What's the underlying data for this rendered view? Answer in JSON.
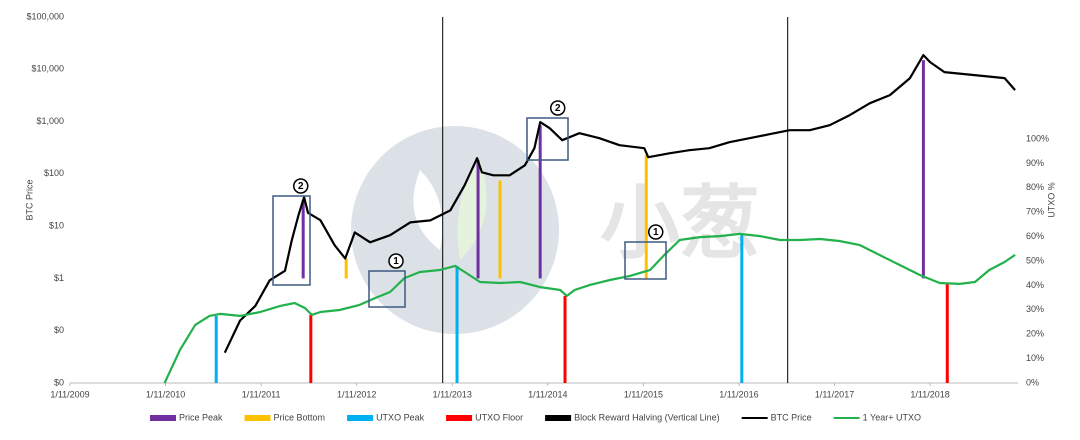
{
  "chart_data": {
    "type": "line",
    "log_scale": true,
    "grid": false,
    "y_label": "BTC Price",
    "y2_label": "UTXO %",
    "watermark": "小葱",
    "xlim": [
      2009.83,
      2019.75
    ],
    "xticks": [
      {
        "value": 2009.83,
        "label": "1/11/2009"
      },
      {
        "value": 2010.83,
        "label": "1/11/2010"
      },
      {
        "value": 2011.83,
        "label": "1/11/2011"
      },
      {
        "value": 2012.83,
        "label": "1/11/2012"
      },
      {
        "value": 2013.83,
        "label": "1/11/2013"
      },
      {
        "value": 2014.83,
        "label": "1/11/2014"
      },
      {
        "value": 2015.83,
        "label": "1/11/2015"
      },
      {
        "value": 2016.83,
        "label": "1/11/2016"
      },
      {
        "value": 2017.83,
        "label": "1/11/2017"
      },
      {
        "value": 2018.83,
        "label": "1/11/2018"
      }
    ],
    "ylim": [
      0.01,
      100000
    ],
    "yticks": [
      {
        "value": 0.01,
        "label": "$0"
      },
      {
        "value": 0.1,
        "label": "$0"
      },
      {
        "value": 1,
        "label": "$1"
      },
      {
        "value": 10,
        "label": "$10"
      },
      {
        "value": 100,
        "label": "$100"
      },
      {
        "value": 1000,
        "label": "$1,000"
      },
      {
        "value": 10000,
        "label": "$10,000"
      },
      {
        "value": 100000,
        "label": "$100,000"
      }
    ],
    "y2lim": [
      0,
      150
    ],
    "y2ticks": [
      {
        "value": 0,
        "label": "0%"
      },
      {
        "value": 10,
        "label": "10%"
      },
      {
        "value": 20,
        "label": "20%"
      },
      {
        "value": 30,
        "label": "30%"
      },
      {
        "value": 40,
        "label": "40%"
      },
      {
        "value": 50,
        "label": "50%"
      },
      {
        "value": 60,
        "label": "60%"
      },
      {
        "value": 70,
        "label": "70%"
      },
      {
        "value": 80,
        "label": "80%"
      },
      {
        "value": 90,
        "label": "90%"
      },
      {
        "value": 100,
        "label": "100%"
      }
    ],
    "markers": [
      {
        "name": "Price Peak",
        "color": "#7030a0",
        "base": 1,
        "x": [
          2012.27,
          2014.1,
          2014.75,
          2018.76
        ],
        "values": [
          31,
          182,
          853,
          15000
        ]
      },
      {
        "name": "Price Bottom",
        "color": "#ffc000",
        "base": 1,
        "x": [
          2012.72,
          2014.33,
          2015.86
        ],
        "values": [
          2.38,
          75,
          227
        ]
      },
      {
        "name": "UTXO Peak",
        "color": "#00b0f0",
        "base": 0,
        "axis": "y2",
        "x": [
          2011.36,
          2013.88,
          2016.86
        ],
        "values": [
          27.5,
          48.0,
          61.1
        ]
      },
      {
        "name": "UTXO Floor",
        "color": "#ff0000",
        "base": 0,
        "axis": "y2",
        "x": [
          2012.35,
          2015.01,
          2019.01
        ],
        "values": [
          27.9,
          35.7,
          41.0
        ]
      },
      {
        "name": "Block Reward Halving (Vertical Line)",
        "color": "#000000",
        "x": [
          2013.73,
          2017.34
        ]
      }
    ],
    "series": [
      {
        "name": "BTC Price",
        "color": "#000000",
        "x": [
          2011.45,
          2011.61,
          2011.77,
          2011.92,
          2012.08,
          2012.15,
          2012.22,
          2012.28,
          2012.32,
          2012.45,
          2012.6,
          2012.71,
          2012.81,
          2012.97,
          2013.18,
          2013.39,
          2013.6,
          2013.81,
          2013.96,
          2014.09,
          2014.14,
          2014.26,
          2014.43,
          2014.59,
          2014.69,
          2014.75,
          2014.85,
          2014.98,
          2015.16,
          2015.37,
          2015.58,
          2015.84,
          2015.88,
          2016.11,
          2016.31,
          2016.52,
          2016.73,
          2016.94,
          2017.15,
          2017.36,
          2017.57,
          2017.78,
          2017.99,
          2018.2,
          2018.41,
          2018.62,
          2018.76,
          2018.83,
          2018.98,
          2019.19,
          2019.4,
          2019.61,
          2019.72
        ],
        "values": [
          0.038,
          0.157,
          0.3,
          0.92,
          1.4,
          5.3,
          16,
          36,
          18,
          13,
          4.3,
          2.4,
          7.6,
          4.9,
          6.7,
          11.8,
          12.9,
          20,
          61,
          199,
          107,
          94,
          94,
          146,
          309,
          975,
          748,
          441,
          600,
          481,
          353,
          309,
          208,
          248,
          283,
          309,
          403,
          481,
          574,
          684,
          684,
          853,
          1327,
          2249,
          3206,
          6776,
          18700,
          13700,
          8830,
          8090,
          7410,
          6780,
          4000
        ]
      },
      {
        "name": "1 Year+ UTXO",
        "color": "#22b14c",
        "axis": "y2",
        "x": [
          2010.82,
          2010.98,
          2011.14,
          2011.29,
          2011.4,
          2011.61,
          2011.82,
          2012.03,
          2012.18,
          2012.29,
          2012.36,
          2012.45,
          2012.65,
          2012.86,
          2013.02,
          2013.18,
          2013.33,
          2013.49,
          2013.7,
          2013.86,
          2013.96,
          2014.12,
          2014.33,
          2014.54,
          2014.75,
          2014.96,
          2015.03,
          2015.11,
          2015.27,
          2015.48,
          2015.69,
          2015.9,
          2016.05,
          2016.21,
          2016.42,
          2016.63,
          2016.84,
          2017.05,
          2017.26,
          2017.47,
          2017.68,
          2017.88,
          2018.09,
          2018.3,
          2018.51,
          2018.72,
          2018.93,
          2019.14,
          2019.3,
          2019.45,
          2019.61,
          2019.72
        ],
        "values": [
          0,
          13.5,
          23.8,
          27.5,
          28.3,
          27.5,
          29.1,
          31.6,
          32.8,
          30.7,
          27.9,
          29.1,
          29.9,
          32.0,
          34.8,
          37.3,
          43.0,
          45.5,
          46.3,
          48.0,
          45.5,
          41.4,
          41.0,
          41.4,
          39.3,
          38.1,
          35.7,
          38.1,
          40.2,
          42.2,
          43.9,
          46.3,
          52.5,
          58.6,
          59.8,
          60.2,
          61.1,
          60.2,
          58.6,
          58.6,
          59.0,
          58.2,
          56.6,
          52.5,
          48.4,
          44.3,
          41.0,
          40.6,
          41.4,
          46.3,
          49.6,
          52.5
        ]
      }
    ],
    "annotations": [
      {
        "label": "2"
      },
      {
        "label": "1"
      },
      {
        "label": "2"
      },
      {
        "label": "1"
      }
    ]
  }
}
